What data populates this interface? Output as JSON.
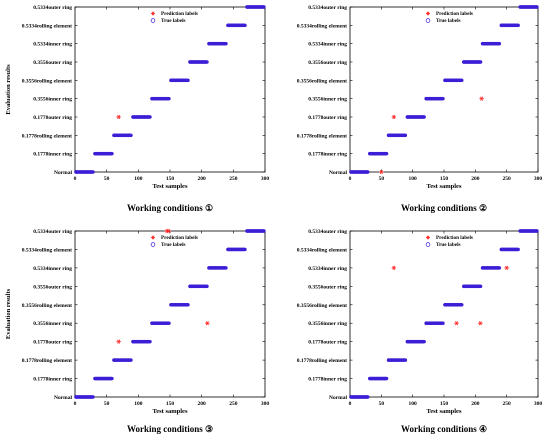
{
  "colors": {
    "true_labels": "#3b1fd6",
    "prediction_labels": "#ff2a2a",
    "axis": "#000000",
    "background": "#ffffff"
  },
  "chart_data": [
    {
      "type": "scatter",
      "title": "Working conditions ①",
      "xlabel": "Test samples",
      "ylabel": "Evaluation results",
      "xlim": [
        0,
        300
      ],
      "xticks": [
        0,
        50,
        100,
        150,
        200,
        250,
        300
      ],
      "categories": [
        "Normal",
        "0.1778inner ring",
        "0.1778rolling element",
        "0.1778outer ring",
        "0.3556inner ring",
        "0.3556rolling element",
        "0.3556outer ring",
        "0.5334inner ring",
        "0.5334rolling element",
        "0.5334outer ring"
      ],
      "legend": {
        "position": "top-left",
        "entries": [
          "Prediction labels",
          "True labels"
        ]
      },
      "series": [
        {
          "name": "True labels",
          "marker": "circle",
          "segments": [
            [
              0,
              30,
              0
            ],
            [
              30,
              60,
              1
            ],
            [
              60,
              90,
              2
            ],
            [
              90,
              120,
              3
            ],
            [
              120,
              150,
              4
            ],
            [
              150,
              180,
              5
            ],
            [
              180,
              210,
              6
            ],
            [
              210,
              240,
              7
            ],
            [
              240,
              270,
              8
            ],
            [
              270,
              300,
              9
            ]
          ]
        },
        {
          "name": "Prediction labels",
          "marker": "asterisk",
          "points": [
            [
              69,
              3
            ]
          ]
        }
      ]
    },
    {
      "type": "scatter",
      "title": "Working conditions ②",
      "xlabel": "Test samples",
      "ylabel": "",
      "xlim": [
        0,
        300
      ],
      "xticks": [
        0,
        50,
        100,
        150,
        200,
        250,
        300
      ],
      "categories": [
        "Normal",
        "0.1778inner ring",
        "0.1778rolling element",
        "0.1778outer ring",
        "0.3556inner ring",
        "0.3556rolling element",
        "0.3556outer ring",
        "0.5334inner ring",
        "0.5334rolling element",
        "0.5334outer ring"
      ],
      "legend": {
        "position": "top-left",
        "entries": [
          "Prediction labels",
          "True labels"
        ]
      },
      "series": [
        {
          "name": "True labels",
          "marker": "circle",
          "segments": [
            [
              0,
              30,
              0
            ],
            [
              30,
              60,
              1
            ],
            [
              60,
              90,
              2
            ],
            [
              90,
              120,
              3
            ],
            [
              120,
              150,
              4
            ],
            [
              150,
              180,
              5
            ],
            [
              180,
              210,
              6
            ],
            [
              210,
              240,
              7
            ],
            [
              240,
              270,
              8
            ],
            [
              270,
              300,
              9
            ]
          ]
        },
        {
          "name": "Prediction labels",
          "marker": "asterisk",
          "points": [
            [
              70,
              3
            ],
            [
              210,
              4
            ],
            [
              50,
              0
            ]
          ]
        }
      ]
    },
    {
      "type": "scatter",
      "title": "Working conditions ③",
      "xlabel": "Test samples",
      "ylabel": "Evaluation results",
      "xlim": [
        0,
        300
      ],
      "xticks": [
        0,
        50,
        100,
        150,
        200,
        250,
        300
      ],
      "categories": [
        "Normal",
        "0.1778inner ring",
        "0.1778rolling element",
        "0.1778outer ring",
        "0.3556inner ring",
        "0.3556rolling element",
        "0.3556outer ring",
        "0.5334inner ring",
        "0.5334rolling element",
        "0.5334outer ring"
      ],
      "legend": {
        "position": "top-left",
        "entries": [
          "Prediction labels",
          "True labels"
        ]
      },
      "series": [
        {
          "name": "True labels",
          "marker": "circle",
          "segments": [
            [
              0,
              30,
              0
            ],
            [
              30,
              60,
              1
            ],
            [
              60,
              90,
              2
            ],
            [
              90,
              120,
              3
            ],
            [
              120,
              150,
              4
            ],
            [
              150,
              180,
              5
            ],
            [
              180,
              210,
              6
            ],
            [
              210,
              240,
              7
            ],
            [
              240,
              270,
              8
            ],
            [
              270,
              300,
              9
            ]
          ]
        },
        {
          "name": "Prediction labels",
          "marker": "asterisk",
          "points": [
            [
              69,
              3
            ],
            [
              209,
              4
            ],
            [
              145,
              9
            ],
            [
              148,
              9
            ]
          ]
        }
      ]
    },
    {
      "type": "scatter",
      "title": "Working conditions ④",
      "xlabel": "Test samples",
      "ylabel": "",
      "xlim": [
        0,
        300
      ],
      "xticks": [
        0,
        50,
        100,
        150,
        200,
        250,
        300
      ],
      "categories": [
        "Normal",
        "0.1778inner ring",
        "0.1778rolling element",
        "0.1778outer ring",
        "0.3556inner ring",
        "0.3556rolling element",
        "0.3556outer ring",
        "0.5334inner ring",
        "0.5334rolling element",
        "0.5334outer ring"
      ],
      "legend": {
        "position": "top-left",
        "entries": [
          "Prediction labels",
          "True labels"
        ]
      },
      "series": [
        {
          "name": "True labels",
          "marker": "circle",
          "segments": [
            [
              0,
              30,
              0
            ],
            [
              30,
              60,
              1
            ],
            [
              60,
              90,
              2
            ],
            [
              90,
              120,
              3
            ],
            [
              120,
              150,
              4
            ],
            [
              150,
              180,
              5
            ],
            [
              180,
              210,
              6
            ],
            [
              210,
              240,
              7
            ],
            [
              240,
              270,
              8
            ],
            [
              270,
              300,
              9
            ]
          ]
        },
        {
          "name": "Prediction labels",
          "marker": "asterisk",
          "points": [
            [
              70,
              7
            ],
            [
              250,
              7
            ],
            [
              170,
              4
            ],
            [
              208,
              4
            ]
          ]
        }
      ]
    }
  ]
}
